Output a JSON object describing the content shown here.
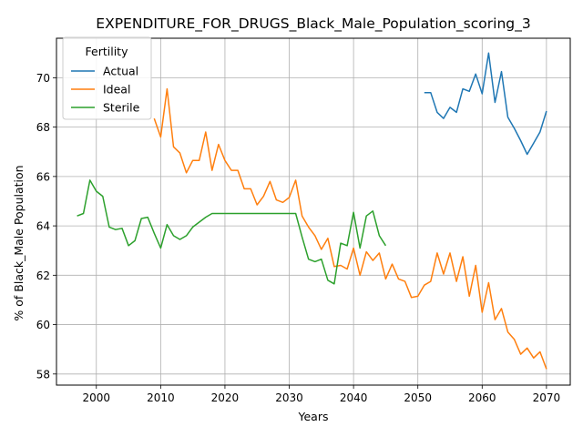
{
  "chart_data": {
    "type": "line",
    "title": "EXPENDITURE_FOR_DRUGS_Black_Male_Population_scoring_3",
    "xlabel": "Years",
    "ylabel": "% of Black_Male Population",
    "xlim": [
      1993.8,
      2073.7
    ],
    "ylim": [
      57.55,
      71.6
    ],
    "xticks": [
      2000,
      2010,
      2020,
      2030,
      2040,
      2050,
      2060,
      2070
    ],
    "yticks": [
      58,
      60,
      62,
      64,
      66,
      68,
      70
    ],
    "grid": true,
    "legend": {
      "title": "Fertility",
      "placement": "top-left"
    },
    "series": [
      {
        "name": "Actual",
        "color": "#1f77b4",
        "x": [
          2051,
          2052,
          2053,
          2054,
          2055,
          2056,
          2057,
          2058,
          2059,
          2060,
          2061,
          2062,
          2063,
          2064,
          2065,
          2066,
          2067,
          2068,
          2069,
          2070
        ],
        "y": [
          69.4,
          69.4,
          68.6,
          68.35,
          68.8,
          68.6,
          69.55,
          69.45,
          70.15,
          69.35,
          71.0,
          69.0,
          70.25,
          68.4,
          67.95,
          67.45,
          66.9,
          67.35,
          67.8,
          68.65
        ]
      },
      {
        "name": "Ideal",
        "color": "#ff7f0e",
        "x": [
          2009,
          2010,
          2011,
          2012,
          2013,
          2014,
          2015,
          2016,
          2017,
          2018,
          2019,
          2020,
          2021,
          2022,
          2023,
          2024,
          2025,
          2026,
          2027,
          2028,
          2029,
          2030,
          2031,
          2032,
          2033,
          2034,
          2035,
          2036,
          2037,
          2038,
          2039,
          2040,
          2041,
          2042,
          2043,
          2044,
          2045,
          2046,
          2047,
          2048,
          2049,
          2050,
          2051,
          2052,
          2053,
          2054,
          2055,
          2056,
          2057,
          2058,
          2059,
          2060,
          2061,
          2062,
          2063,
          2064,
          2065,
          2066,
          2067,
          2068,
          2069,
          2070
        ],
        "y": [
          68.35,
          67.6,
          69.55,
          67.2,
          66.95,
          66.15,
          66.65,
          66.65,
          67.8,
          66.25,
          67.3,
          66.65,
          66.25,
          66.25,
          65.5,
          65.5,
          64.85,
          65.2,
          65.8,
          65.05,
          64.95,
          65.15,
          65.85,
          64.4,
          63.95,
          63.6,
          63.05,
          63.5,
          62.35,
          62.4,
          62.25,
          63.1,
          62.0,
          62.95,
          62.6,
          62.9,
          61.85,
          62.45,
          61.85,
          61.75,
          61.1,
          61.15,
          61.6,
          61.75,
          62.9,
          62.05,
          62.9,
          61.75,
          62.75,
          61.15,
          62.4,
          60.5,
          61.7,
          60.2,
          60.65,
          59.7,
          59.4,
          58.8,
          59.05,
          58.65,
          58.9,
          58.2
        ]
      },
      {
        "name": "Sterile",
        "color": "#2ca02c",
        "x": [
          1997,
          1998,
          1999,
          2000,
          2001,
          2002,
          2003,
          2004,
          2005,
          2006,
          2007,
          2008,
          2009,
          2010,
          2011,
          2012,
          2013,
          2014,
          2015,
          2016,
          2017,
          2018,
          2019,
          2020,
          2021,
          2022,
          2023,
          2024,
          2025,
          2026,
          2027,
          2028,
          2029,
          2030,
          2031,
          2032,
          2033,
          2034,
          2035,
          2036,
          2037,
          2038,
          2039,
          2040,
          2041,
          2042,
          2043,
          2044,
          2045
        ],
        "y": [
          64.4,
          64.5,
          65.85,
          65.4,
          65.2,
          63.95,
          63.85,
          63.9,
          63.2,
          63.4,
          64.3,
          64.35,
          63.7,
          63.1,
          64.05,
          63.6,
          63.45,
          63.6,
          63.95,
          64.15,
          64.35,
          64.5,
          64.5,
          64.5,
          64.5,
          64.5,
          64.5,
          64.5,
          64.5,
          64.5,
          64.5,
          64.5,
          64.5,
          64.5,
          64.5,
          63.55,
          62.65,
          62.55,
          62.65,
          61.8,
          61.65,
          63.3,
          63.2,
          64.55,
          63.1,
          64.4,
          64.6,
          63.6,
          63.2
        ]
      }
    ]
  }
}
